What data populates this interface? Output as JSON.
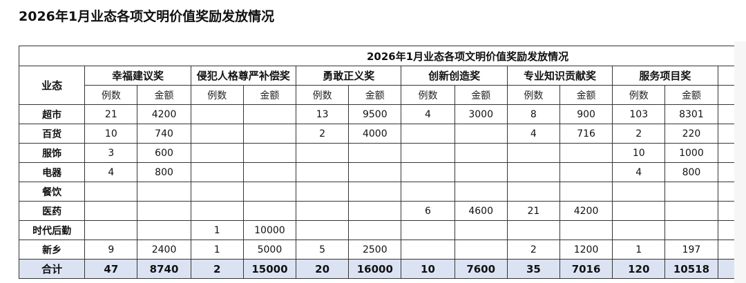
{
  "page_title": "2026年1月业态各项文明价值奖励发放情况",
  "table": {
    "title": "2026年1月业态各项文明价值奖励发放情况",
    "row_header": "业态",
    "awards": [
      "幸福建议奖",
      "侵犯人格尊严补偿奖",
      "勇敢正义奖",
      "创新创造奖",
      "专业知识贡献奖",
      "服务项目奖"
    ],
    "sub_headers": [
      "例数",
      "金额"
    ],
    "rows": [
      {
        "name": "超市",
        "cells": [
          "21",
          "4200",
          "",
          "",
          "13",
          "9500",
          "4",
          "3000",
          "8",
          "900",
          "103",
          "8301"
        ]
      },
      {
        "name": "百货",
        "cells": [
          "10",
          "740",
          "",
          "",
          "2",
          "4000",
          "",
          "",
          "4",
          "716",
          "2",
          "220"
        ]
      },
      {
        "name": "服饰",
        "cells": [
          "3",
          "600",
          "",
          "",
          "",
          "",
          "",
          "",
          "",
          "",
          "10",
          "1000"
        ]
      },
      {
        "name": "电器",
        "cells": [
          "4",
          "800",
          "",
          "",
          "",
          "",
          "",
          "",
          "",
          "",
          "4",
          "800"
        ]
      },
      {
        "name": "餐饮",
        "cells": [
          "",
          "",
          "",
          "",
          "",
          "",
          "",
          "",
          "",
          "",
          "",
          ""
        ]
      },
      {
        "name": "医药",
        "cells": [
          "",
          "",
          "",
          "",
          "",
          "",
          "6",
          "4600",
          "21",
          "4200",
          "",
          ""
        ]
      },
      {
        "name": "时代后勤",
        "cells": [
          "",
          "",
          "1",
          "10000",
          "",
          "",
          "",
          "",
          "",
          "",
          "",
          ""
        ]
      },
      {
        "name": "新乡",
        "cells": [
          "9",
          "2400",
          "1",
          "5000",
          "5",
          "2500",
          "",
          "",
          "2",
          "1200",
          "1",
          "197"
        ]
      }
    ],
    "total": {
      "name": "合计",
      "cells": [
        "47",
        "8740",
        "2",
        "15000",
        "20",
        "16000",
        "10",
        "7600",
        "35",
        "7016",
        "120",
        "10518"
      ]
    }
  },
  "colors": {
    "total_row_bg": "#dbe3f3",
    "border": "#333333"
  }
}
